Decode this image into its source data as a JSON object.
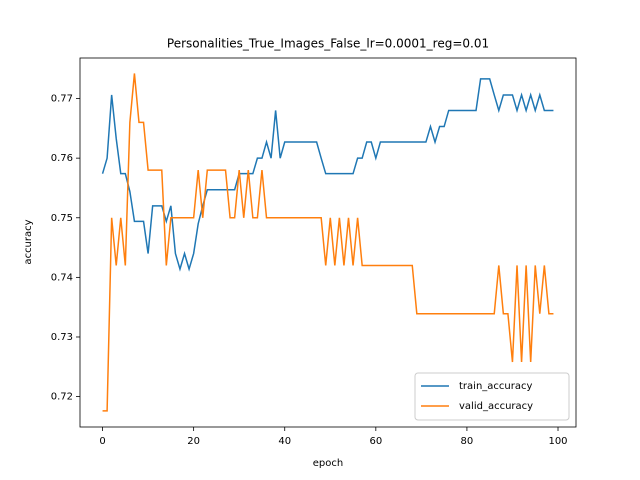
{
  "chart_data": {
    "type": "line",
    "title": "Personalities_True_Images_False_lr=0.0001_reg=0.01",
    "x_label": "epoch",
    "y_label": "accuracy",
    "x": [
      0,
      1,
      2,
      3,
      4,
      5,
      6,
      7,
      8,
      9,
      10,
      11,
      12,
      13,
      14,
      15,
      16,
      17,
      18,
      19,
      20,
      21,
      22,
      23,
      24,
      25,
      26,
      27,
      28,
      29,
      30,
      31,
      32,
      33,
      34,
      35,
      36,
      37,
      38,
      39,
      40,
      41,
      42,
      43,
      44,
      45,
      46,
      47,
      48,
      49,
      50,
      51,
      52,
      53,
      54,
      55,
      56,
      57,
      58,
      59,
      60,
      61,
      62,
      63,
      64,
      65,
      66,
      67,
      68,
      69,
      70,
      71,
      72,
      73,
      74,
      75,
      76,
      77,
      78,
      79,
      80,
      81,
      82,
      83,
      84,
      85,
      86,
      87,
      88,
      89,
      90,
      91,
      92,
      93,
      94,
      95,
      96,
      97,
      98,
      99
    ],
    "series": [
      {
        "name": "train_accuracy",
        "color": "#1f77b4",
        "values": [
          0.7574,
          0.76,
          0.7706,
          0.7633,
          0.7574,
          0.7574,
          0.7544,
          0.7494,
          0.7494,
          0.7494,
          0.744,
          0.752,
          0.752,
          0.752,
          0.7494,
          0.752,
          0.744,
          0.7414,
          0.744,
          0.7414,
          0.744,
          0.749,
          0.752,
          0.7547,
          0.7547,
          0.7547,
          0.7547,
          0.7547,
          0.7547,
          0.7547,
          0.7574,
          0.7574,
          0.7574,
          0.7574,
          0.76,
          0.76,
          0.7627,
          0.76,
          0.768,
          0.76,
          0.7627,
          0.7627,
          0.7627,
          0.7627,
          0.7627,
          0.7627,
          0.7627,
          0.7627,
          0.76,
          0.7574,
          0.7574,
          0.7574,
          0.7574,
          0.7574,
          0.7574,
          0.7574,
          0.76,
          0.76,
          0.7627,
          0.7627,
          0.76,
          0.7627,
          0.7627,
          0.7627,
          0.7627,
          0.7627,
          0.7627,
          0.7627,
          0.7627,
          0.7627,
          0.7627,
          0.7627,
          0.7653,
          0.7627,
          0.7653,
          0.7653,
          0.768,
          0.768,
          0.768,
          0.768,
          0.768,
          0.768,
          0.768,
          0.7733,
          0.7733,
          0.7733,
          0.7706,
          0.768,
          0.7706,
          0.7706,
          0.7706,
          0.768,
          0.7706,
          0.768,
          0.7706,
          0.768,
          0.7706,
          0.768,
          0.768,
          0.768
        ]
      },
      {
        "name": "valid_accuracy",
        "color": "#ff7f0e",
        "values": [
          0.7176,
          0.7176,
          0.75,
          0.742,
          0.75,
          0.742,
          0.766,
          0.7742,
          0.766,
          0.766,
          0.758,
          0.758,
          0.758,
          0.758,
          0.742,
          0.75,
          0.75,
          0.75,
          0.75,
          0.75,
          0.75,
          0.758,
          0.75,
          0.758,
          0.758,
          0.758,
          0.758,
          0.758,
          0.75,
          0.75,
          0.758,
          0.75,
          0.758,
          0.75,
          0.75,
          0.758,
          0.75,
          0.75,
          0.75,
          0.75,
          0.75,
          0.75,
          0.75,
          0.75,
          0.75,
          0.75,
          0.75,
          0.75,
          0.75,
          0.742,
          0.75,
          0.742,
          0.75,
          0.742,
          0.75,
          0.742,
          0.75,
          0.742,
          0.742,
          0.742,
          0.742,
          0.742,
          0.742,
          0.742,
          0.742,
          0.742,
          0.742,
          0.742,
          0.742,
          0.7339,
          0.7339,
          0.7339,
          0.7339,
          0.7339,
          0.7339,
          0.7339,
          0.7339,
          0.7339,
          0.7339,
          0.7339,
          0.7339,
          0.7339,
          0.7339,
          0.7339,
          0.7339,
          0.7339,
          0.7339,
          0.742,
          0.7339,
          0.7339,
          0.7258,
          0.742,
          0.7258,
          0.742,
          0.7258,
          0.742,
          0.7339,
          0.742,
          0.7339,
          0.7339
        ]
      }
    ],
    "xlim": [
      -4.95,
      103.95
    ],
    "ylim": [
      0.7149,
      0.7768
    ],
    "xticks": [
      0,
      20,
      40,
      60,
      80,
      100
    ],
    "yticks": [
      0.72,
      0.73,
      0.74,
      0.75,
      0.76,
      0.77
    ],
    "legend": "lower right"
  }
}
